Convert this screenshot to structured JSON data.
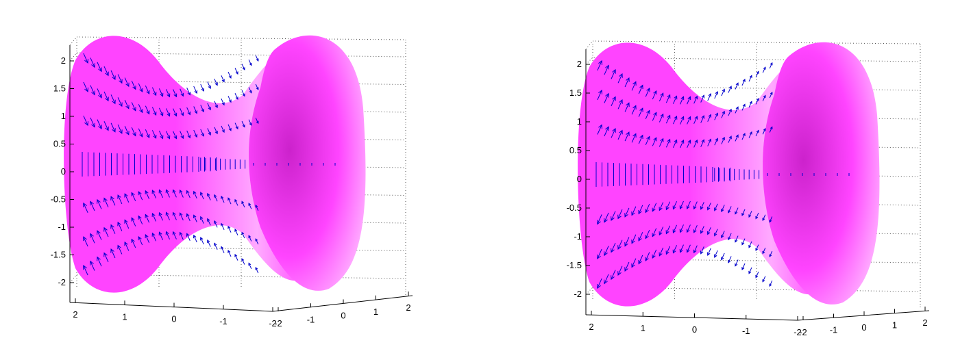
{
  "colors": {
    "surface": "#ff44ff",
    "surface_light": "#ffaaff",
    "surface_dark": "#cc22cc",
    "vectors": "#0000cc",
    "axes": "#000000",
    "grid": "#555555"
  },
  "chart_data": [
    {
      "type": "surface-quiver",
      "title": "",
      "xlabel": "",
      "ylabel": "",
      "zlabel": "",
      "z_ticks": [
        "2",
        "1.5",
        "1",
        "0.5",
        "0",
        "-0.5",
        "-1",
        "-1.5",
        "-2"
      ],
      "x_ticks": [
        "2",
        "1",
        "0",
        "-1",
        "-2"
      ],
      "y_ticks": [
        "-2",
        "-1",
        "0",
        "1",
        "2"
      ],
      "zlim": [
        -2.2,
        2.3
      ],
      "grid": "on",
      "vector_direction": "outward"
    },
    {
      "type": "surface-quiver",
      "title": "",
      "xlabel": "",
      "ylabel": "",
      "zlabel": "",
      "z_ticks": [
        "2",
        "1.5",
        "1",
        "0.5",
        "0",
        "-0.5",
        "-1",
        "-1.5",
        "-2"
      ],
      "x_ticks": [
        "2",
        "1",
        "0",
        "-1",
        "-2"
      ],
      "y_ticks": [
        "-2",
        "-1",
        "0",
        "1",
        "2"
      ],
      "zlim": [
        -2.2,
        2.3
      ],
      "grid": "on",
      "vector_direction": "inward"
    }
  ]
}
